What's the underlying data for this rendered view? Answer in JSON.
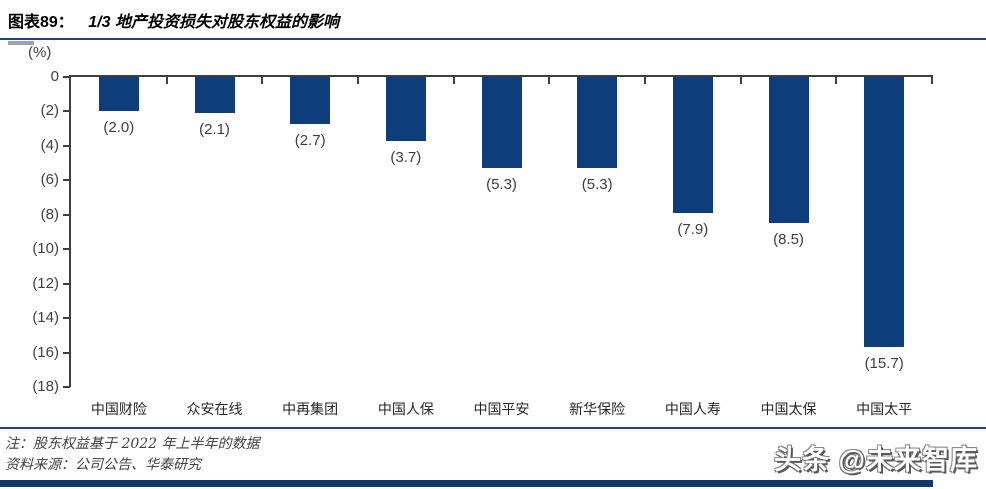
{
  "header": {
    "tag": "图表89：",
    "title": "1/3 地产投资损失对股东权益的影响"
  },
  "chart_data": {
    "type": "bar",
    "title": "1/3 地产投资损失对股东权益的影响",
    "unit_label": "(%)",
    "categories": [
      "中国财险",
      "众安在线",
      "中再集团",
      "中国人保",
      "中国平安",
      "新华保险",
      "中国人寿",
      "中国太保",
      "中国太平"
    ],
    "values": [
      -2.0,
      -2.1,
      -2.7,
      -3.7,
      -5.3,
      -5.3,
      -7.9,
      -8.5,
      -15.7
    ],
    "value_labels": [
      "(2.0)",
      "(2.1)",
      "(2.7)",
      "(3.7)",
      "(5.3)",
      "(5.3)",
      "(7.9)",
      "(8.5)",
      "(15.7)"
    ],
    "y_axis": {
      "ticks": [
        "0",
        "(2)",
        "(4)",
        "(6)",
        "(8)",
        "(10)",
        "(12)",
        "(14)",
        "(16)",
        "(18)"
      ],
      "min": -18,
      "max": 0,
      "step": 2
    },
    "ylim": [
      -18,
      0
    ],
    "grid": false,
    "legend": "none",
    "bar_color": "#0E3D7C",
    "axis_color": "#3F3F3F"
  },
  "footer": {
    "note": "注：股东权益基于 2022 年上半年的数据",
    "source": "资料来源：公司公告、华泰研究"
  },
  "watermark": "头条 @未来智库"
}
